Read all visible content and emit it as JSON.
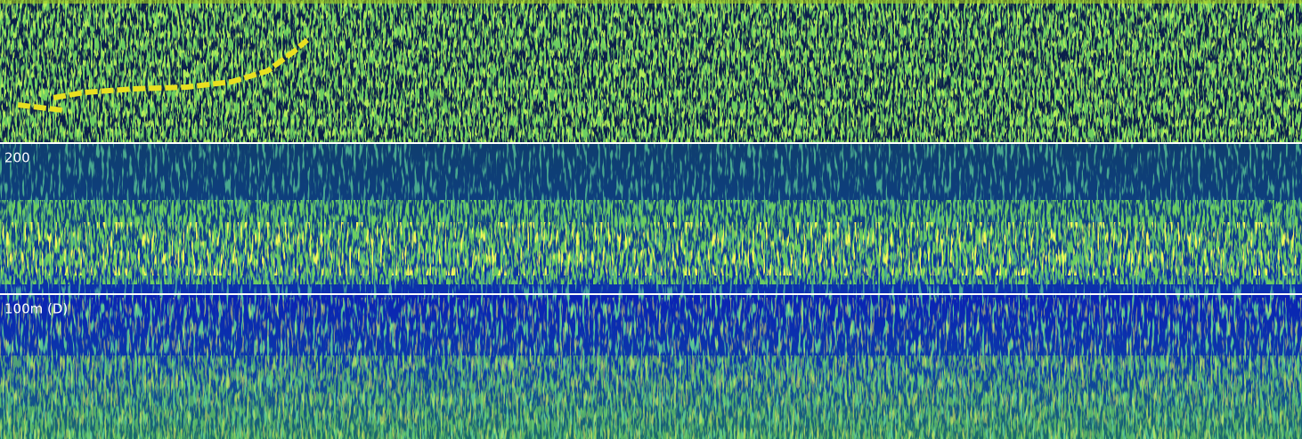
{
  "depth_markers": [
    {
      "label": "200"
    },
    {
      "label": "100m (D)"
    }
  ]
}
